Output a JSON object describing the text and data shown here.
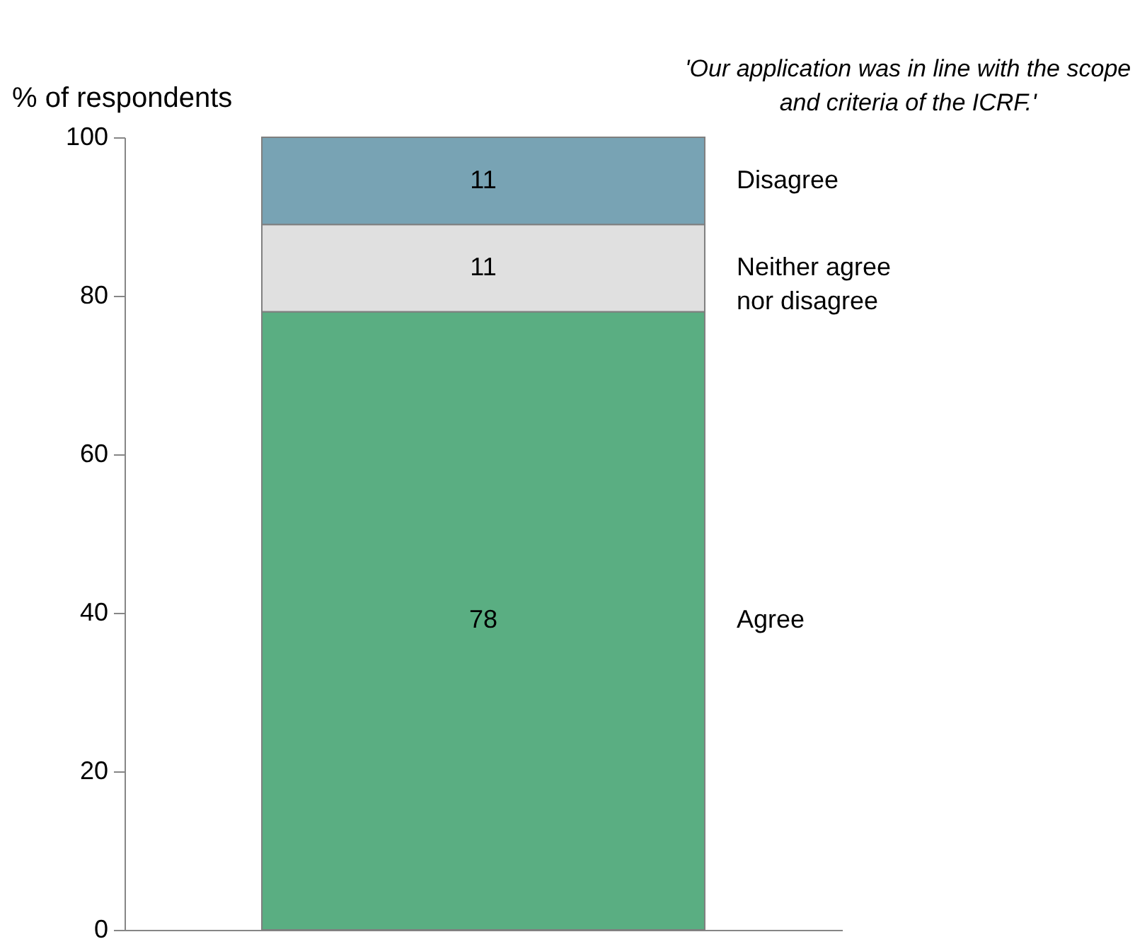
{
  "chart_data": {
    "type": "bar",
    "title": "'Our application was in line with the scope and criteria of the ICRF.'",
    "ylabel": "% of respondents",
    "categories": [
      null
    ],
    "stacked": true,
    "data_labels": true,
    "ylim": [
      0,
      100
    ],
    "yticks": [
      0,
      20,
      40,
      60,
      80,
      100
    ],
    "grid": false,
    "series": [
      {
        "name": "Agree",
        "color": "#5aae82",
        "values": [
          78
        ]
      },
      {
        "name": "Neither agree nor disagree",
        "color": "#e0e0e0",
        "values": [
          11
        ]
      },
      {
        "name": "Disagree",
        "color": "#78a3b4",
        "values": [
          11
        ]
      }
    ]
  }
}
